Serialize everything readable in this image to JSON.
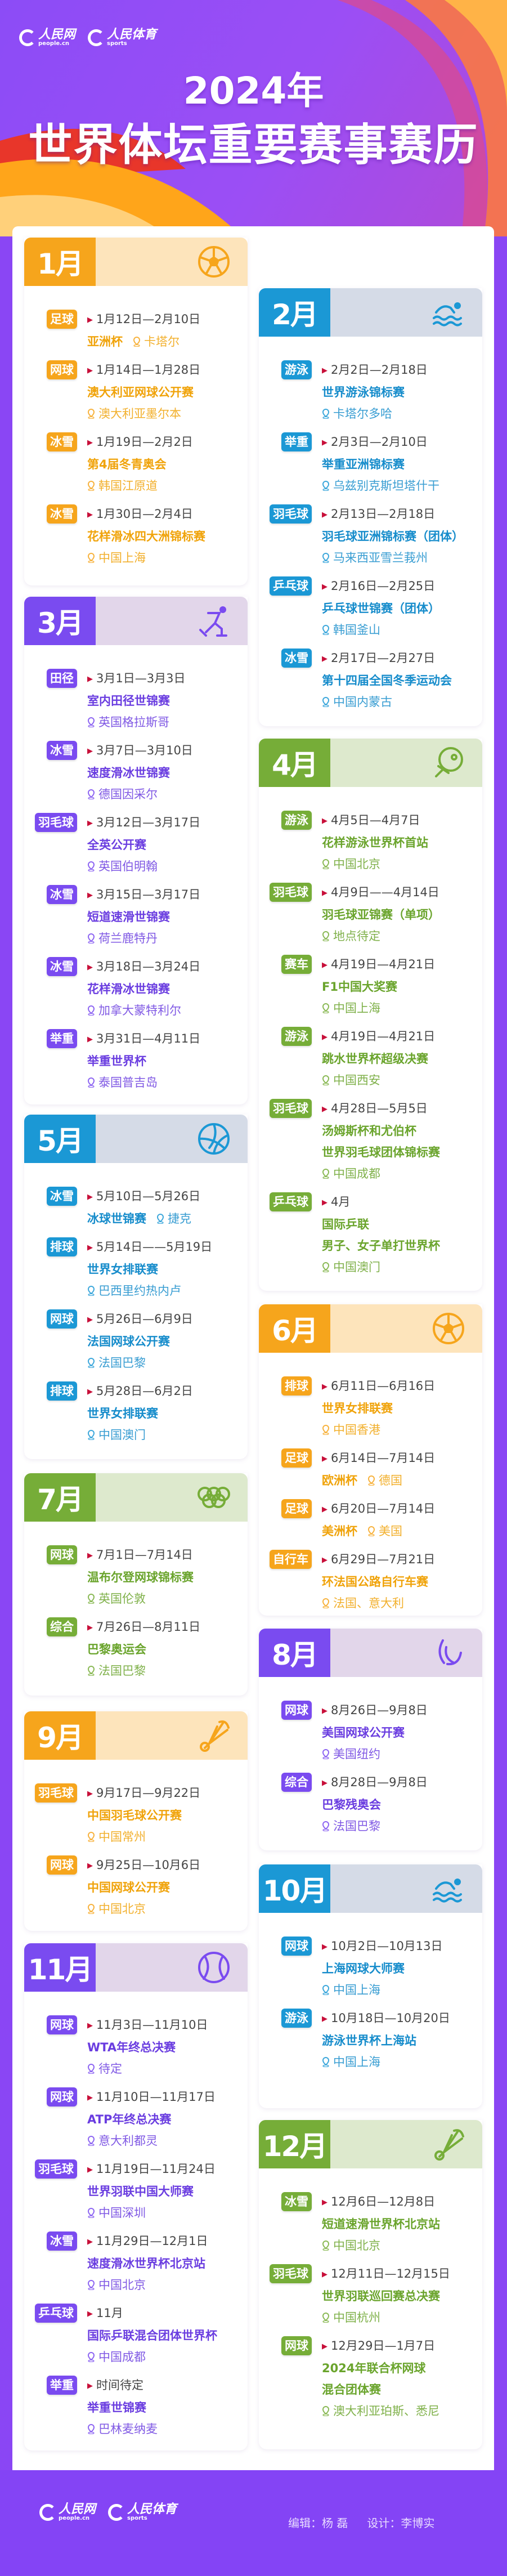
{
  "logos": {
    "people": "人民网",
    "people_en": "people.cn",
    "sports": "人民体育",
    "sports_en": "sports"
  },
  "title": {
    "year": "2024年",
    "main": "世界体坛重要赛事赛历"
  },
  "themes": {
    "orange": {
      "main": "#f6a51c",
      "light": "#fde4bb",
      "text": "#f0a30a"
    },
    "blue": {
      "main": "#1b98d5",
      "light": "#d5dbe7",
      "text": "#168ccb"
    },
    "purple": {
      "main": "#7a4bf0",
      "light": "#e2d6ea",
      "text": "#6a3de0"
    },
    "green": {
      "main": "#76ad38",
      "light": "#dde9cd",
      "text": "#6aa42c"
    }
  },
  "months": [
    {
      "label": "1月",
      "theme": "orange",
      "icon": "soccer-ball",
      "events": [
        {
          "sport": "足球",
          "date": "1月12日—2月10日",
          "name": "亚洲杯",
          "location": "卡塔尔",
          "inline": true
        },
        {
          "sport": "网球",
          "date": "1月14日—1月28日",
          "name": "澳大利亚网球公开赛",
          "location": "澳大利亚墨尔本"
        },
        {
          "sport": "冰雪",
          "date": "1月19日—2月2日",
          "name": "第4届冬青奥会",
          "location": "韩国江原道"
        },
        {
          "sport": "冰雪",
          "date": "1月30日—2月4日",
          "name": "花样滑冰四大洲锦标赛",
          "location": "中国上海"
        }
      ]
    },
    {
      "label": "2月",
      "theme": "blue",
      "icon": "swimmer",
      "events": [
        {
          "sport": "游泳",
          "date": "2月2日—2月18日",
          "name": "世界游泳锦标赛",
          "location": "卡塔尔多哈"
        },
        {
          "sport": "举重",
          "date": "2月3日—2月10日",
          "name": "举重亚洲锦标赛",
          "location": "乌兹别克斯坦塔什干"
        },
        {
          "sport": "羽毛球",
          "date": "2月13日—2月18日",
          "name": "羽毛球亚洲锦标赛（团体）",
          "location": "马来西亚雪兰莪州"
        },
        {
          "sport": "乒乓球",
          "date": "2月16日—2月25日",
          "name": "乒乓球世锦赛（团体）",
          "location": "韩国釜山"
        },
        {
          "sport": "冰雪",
          "date": "2月17日—2月27日",
          "name": "第十四届全国冬季运动会",
          "location": "中国内蒙古"
        }
      ]
    },
    {
      "label": "3月",
      "theme": "purple",
      "icon": "speed-skater",
      "events": [
        {
          "sport": "田径",
          "date": "3月1日—3月3日",
          "name": "室内田径世锦赛",
          "location": "英国格拉斯哥"
        },
        {
          "sport": "冰雪",
          "date": "3月7日—3月10日",
          "name": "速度滑冰世锦赛",
          "location": "德国因采尔"
        },
        {
          "sport": "羽毛球",
          "date": "3月12日—3月17日",
          "name": "全英公开赛",
          "location": "英国伯明翰"
        },
        {
          "sport": "冰雪",
          "date": "3月15日—3月17日",
          "name": "短道速滑世锦赛",
          "location": "荷兰鹿特丹"
        },
        {
          "sport": "冰雪",
          "date": "3月18日—3月24日",
          "name": "花样滑冰世锦赛",
          "location": "加拿大蒙特利尔"
        },
        {
          "sport": "举重",
          "date": "3月31日—4月11日",
          "name": "举重世界杯",
          "location": "泰国普吉岛"
        }
      ]
    },
    {
      "label": "4月",
      "theme": "green",
      "icon": "ping-pong-paddle",
      "events": [
        {
          "sport": "游泳",
          "date": "4月5日—4月7日",
          "name": "花样游泳世界杯首站",
          "location": "中国北京"
        },
        {
          "sport": "羽毛球",
          "date": "4月9日——4月14日",
          "name": "羽毛球亚锦赛（单项）",
          "location": "地点待定"
        },
        {
          "sport": "赛车",
          "date": "4月19日—4月21日",
          "name": "F1中国大奖赛",
          "location": "中国上海"
        },
        {
          "sport": "游泳",
          "date": "4月19日—4月21日",
          "name": "跳水世界杯超级决赛",
          "location": "中国西安"
        },
        {
          "sport": "羽毛球",
          "date": "4月28日—5月5日",
          "name": "汤姆斯杯和尤伯杯\n世界羽毛球团体锦标赛",
          "location": "中国成都"
        },
        {
          "sport": "乒乓球",
          "date": "4月",
          "name": "国际乒联\n男子、女子单打世界杯",
          "location": "中国澳门"
        }
      ]
    },
    {
      "label": "5月",
      "theme": "blue",
      "icon": "volleyball",
      "events": [
        {
          "sport": "冰雪",
          "date": "5月10日—5月26日",
          "name": "冰球世锦赛",
          "location": "捷克",
          "inline": true
        },
        {
          "sport": "排球",
          "date": "5月14日——5月19日",
          "name": "世界女排联赛",
          "location": "巴西里约热内卢"
        },
        {
          "sport": "网球",
          "date": "5月26日—6月9日",
          "name": "法国网球公开赛",
          "location": "法国巴黎"
        },
        {
          "sport": "排球",
          "date": "5月28日—6月2日",
          "name": "世界女排联赛",
          "location": "中国澳门"
        }
      ]
    },
    {
      "label": "6月",
      "theme": "orange",
      "icon": "soccer-ball",
      "events": [
        {
          "sport": "排球",
          "date": "6月11日—6月16日",
          "name": "世界女排联赛",
          "location": "中国香港"
        },
        {
          "sport": "足球",
          "date": "6月14日—7月14日",
          "name": "欧洲杯",
          "location": "德国",
          "inline": true
        },
        {
          "sport": "足球",
          "date": "6月20日—7月14日",
          "name": "美洲杯",
          "location": "美国",
          "inline": true
        },
        {
          "sport": "自行车",
          "date": "6月29日—7月21日",
          "name": "环法国公路自行车赛",
          "location": "法国、意大利"
        }
      ]
    },
    {
      "label": "7月",
      "theme": "green",
      "icon": "olympic-rings",
      "events": [
        {
          "sport": "网球",
          "date": "7月1日—7月14日",
          "name": "温布尔登网球锦标赛",
          "location": "英国伦敦"
        },
        {
          "sport": "综合",
          "date": "7月26日—8月11日",
          "name": "巴黎奥运会",
          "location": "法国巴黎"
        }
      ]
    },
    {
      "label": "8月",
      "theme": "purple",
      "icon": "paralympic-agitos",
      "events": [
        {
          "sport": "网球",
          "date": "8月26日—9月8日",
          "name": "美国网球公开赛",
          "location": "美国纽约"
        },
        {
          "sport": "综合",
          "date": "8月28日—9月8日",
          "name": "巴黎残奥会",
          "location": "法国巴黎"
        }
      ]
    },
    {
      "label": "9月",
      "theme": "orange",
      "icon": "shuttlecock",
      "events": [
        {
          "sport": "羽毛球",
          "date": "9月17日—9月22日",
          "name": "中国羽毛球公开赛",
          "location": "中国常州"
        },
        {
          "sport": "网球",
          "date": "9月25日—10月6日",
          "name": "中国网球公开赛",
          "location": "中国北京"
        }
      ]
    },
    {
      "label": "10月",
      "theme": "blue",
      "icon": "swimmer",
      "events": [
        {
          "sport": "网球",
          "date": "10月2日—10月13日",
          "name": "上海网球大师赛",
          "location": "中国上海"
        },
        {
          "sport": "游泳",
          "date": "10月18日—10月20日",
          "name": "游泳世界杯上海站",
          "location": "中国上海"
        }
      ]
    },
    {
      "label": "11月",
      "theme": "purple",
      "icon": "tennis-ball",
      "events": [
        {
          "sport": "网球",
          "date": "11月3日—11月10日",
          "name": "WTA年终总决赛",
          "location": "待定"
        },
        {
          "sport": "网球",
          "date": "11月10日—11月17日",
          "name": "ATP年终总决赛",
          "location": "意大利都灵"
        },
        {
          "sport": "羽毛球",
          "date": "11月19日—11月24日",
          "name": "世界羽联中国大师赛",
          "location": "中国深圳"
        },
        {
          "sport": "冰雪",
          "date": "11月29日—12月1日",
          "name": "速度滑冰世界杯北京站",
          "location": "中国北京"
        },
        {
          "sport": "乒乓球",
          "date": "11月",
          "name": "国际乒联混合团体世界杯",
          "location": "中国成都"
        },
        {
          "sport": "举重",
          "date": "时间待定",
          "name": "举重世锦赛",
          "location": "巴林麦纳麦"
        }
      ]
    },
    {
      "label": "12月",
      "theme": "green",
      "icon": "shuttlecock",
      "events": [
        {
          "sport": "冰雪",
          "date": "12月6日—12月8日",
          "name": "短道速滑世界杯北京站",
          "location": "中国北京"
        },
        {
          "sport": "羽毛球",
          "date": "12月11日—12月15日",
          "name": "世界羽联巡回赛总决赛",
          "location": "中国杭州"
        },
        {
          "sport": "网球",
          "date": "12月29日—1月7日",
          "name": "2024年联合杯网球\n混合团体赛",
          "location": "澳大利亚珀斯、悉尼"
        }
      ]
    }
  ],
  "footer": {
    "editor": "编辑：杨 磊",
    "designer": "设计：李博实"
  }
}
